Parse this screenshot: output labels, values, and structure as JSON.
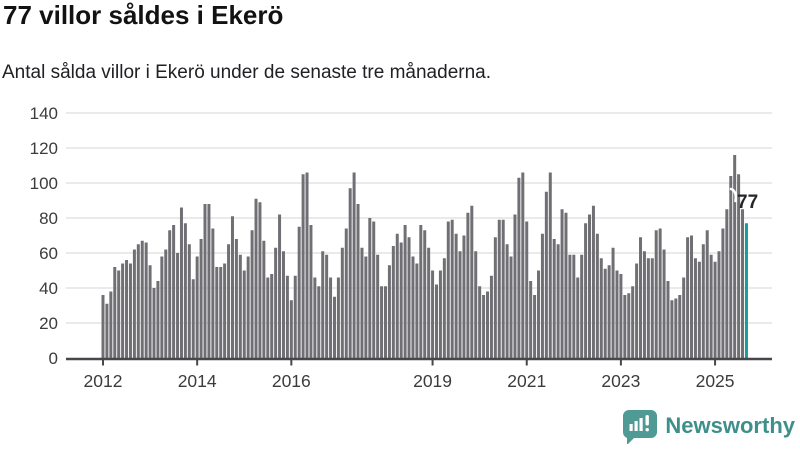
{
  "header": {
    "title": "77 villor såldes i Ekerö",
    "subtitle": "Antal sålda villor i Ekerö under de senaste tre månaderna."
  },
  "chart_data": {
    "type": "bar",
    "title": "77 villor såldes i Ekerö",
    "subtitle": "Antal sålda villor i Ekerö under de senaste tre månaderna.",
    "x_unit": "month",
    "start_month": "2012-01",
    "end_month": "2025-09",
    "values": [
      36,
      31,
      38,
      52,
      50,
      54,
      56,
      54,
      62,
      65,
      67,
      66,
      53,
      40,
      44,
      58,
      62,
      73,
      76,
      60,
      86,
      77,
      65,
      45,
      58,
      68,
      88,
      88,
      74,
      52,
      52,
      54,
      65,
      81,
      68,
      59,
      50,
      58,
      73,
      91,
      89,
      67,
      46,
      48,
      63,
      82,
      61,
      47,
      33,
      47,
      75,
      105,
      106,
      76,
      46,
      41,
      61,
      59,
      46,
      35,
      46,
      63,
      74,
      97,
      106,
      88,
      63,
      58,
      80,
      78,
      59,
      41,
      41,
      53,
      64,
      71,
      66,
      76,
      69,
      58,
      54,
      76,
      73,
      63,
      50,
      42,
      50,
      57,
      78,
      79,
      71,
      61,
      70,
      83,
      87,
      61,
      41,
      36,
      38,
      47,
      69,
      79,
      79,
      65,
      58,
      82,
      103,
      106,
      78,
      44,
      36,
      50,
      71,
      95,
      106,
      68,
      65,
      85,
      83,
      59,
      59,
      46,
      59,
      77,
      82,
      87,
      71,
      57,
      51,
      53,
      63,
      50,
      48,
      36,
      37,
      41,
      54,
      69,
      61,
      57,
      57,
      73,
      74,
      62,
      44,
      33,
      34,
      36,
      46,
      69,
      70,
      57,
      55,
      65,
      73,
      59,
      55,
      61,
      74,
      85,
      104,
      116,
      105,
      85,
      77
    ],
    "highlight": {
      "index": 164,
      "label": "77",
      "color": "#189E97"
    },
    "bar_color": "#706F74",
    "ylim": [
      0,
      140
    ],
    "yticks": [
      0,
      20,
      40,
      60,
      80,
      100,
      120,
      140
    ],
    "xticks": [
      {
        "label": "2012",
        "month_index": 0
      },
      {
        "label": "2014",
        "month_index": 24
      },
      {
        "label": "2016",
        "month_index": 48
      },
      {
        "label": "2019",
        "month_index": 84
      },
      {
        "label": "2021",
        "month_index": 108
      },
      {
        "label": "2023",
        "month_index": 132
      },
      {
        "label": "2025",
        "month_index": 156
      }
    ],
    "grid": true,
    "legend": false,
    "grid_color": "#E4E4E4",
    "axis_color": "#47464B",
    "tick_label_color": "#3C3C3C"
  },
  "footer": {
    "brand": "Newsworthy",
    "logo_icon": "bar-chart-speech-bubble-icon",
    "brand_text_color": "#3E8F8B",
    "logo_bg_color": "#4F9A94"
  }
}
